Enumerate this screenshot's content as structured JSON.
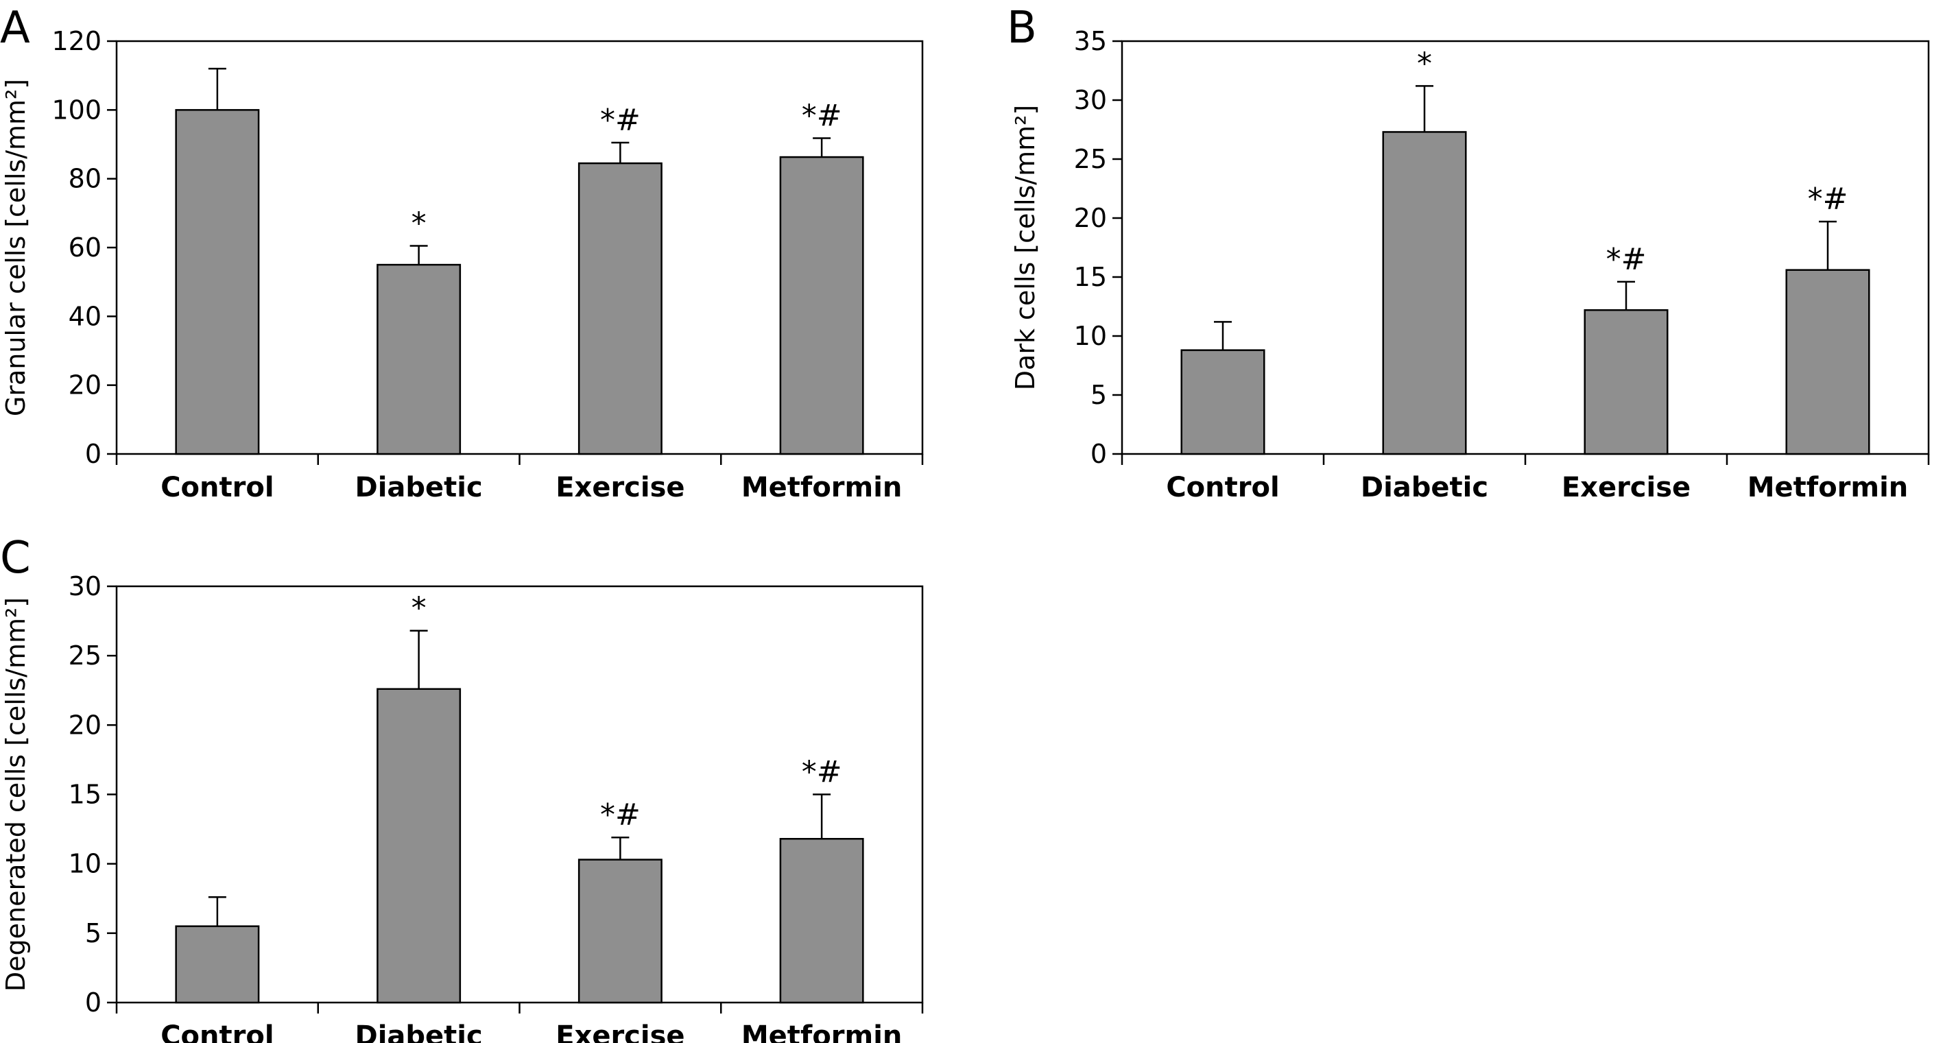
{
  "chart_data": [
    {
      "panel": "A",
      "type": "bar",
      "categories": [
        "Control",
        "Diabetic",
        "Exercise",
        "Metformin"
      ],
      "values": [
        100,
        55,
        84.5,
        86.3
      ],
      "errors": [
        12,
        5.5,
        6,
        5.5
      ],
      "annotations": [
        "",
        "*",
        "*#",
        "*#"
      ],
      "ylabel": "Granular cells [cells/mm²]",
      "ylim": [
        0,
        120
      ],
      "yticks": [
        0,
        20,
        40,
        60,
        80,
        100,
        120
      ],
      "bar_color": "#8f8f8f"
    },
    {
      "panel": "B",
      "type": "bar",
      "categories": [
        "Control",
        "Diabetic",
        "Exercise",
        "Metformin"
      ],
      "values": [
        8.8,
        27.3,
        12.2,
        15.6
      ],
      "errors": [
        2.4,
        3.9,
        2.4,
        4.1
      ],
      "annotations": [
        "",
        "*",
        "*#",
        "*#"
      ],
      "ylabel": "Dark cells [cells/mm²]",
      "ylim": [
        0,
        35
      ],
      "yticks": [
        0,
        5,
        10,
        15,
        20,
        25,
        30,
        35
      ],
      "bar_color": "#8f8f8f"
    },
    {
      "panel": "C",
      "type": "bar",
      "categories": [
        "Control",
        "Diabetic",
        "Exercise",
        "Metformin"
      ],
      "values": [
        5.5,
        22.6,
        10.3,
        11.8
      ],
      "errors": [
        2.1,
        4.2,
        1.6,
        3.2
      ],
      "annotations": [
        "",
        "*",
        "*#",
        "*#"
      ],
      "ylabel": "Degenerated cells [cells/mm²]",
      "ylim": [
        0,
        30
      ],
      "yticks": [
        0,
        5,
        10,
        15,
        20,
        25,
        30
      ],
      "bar_color": "#8f8f8f"
    }
  ]
}
